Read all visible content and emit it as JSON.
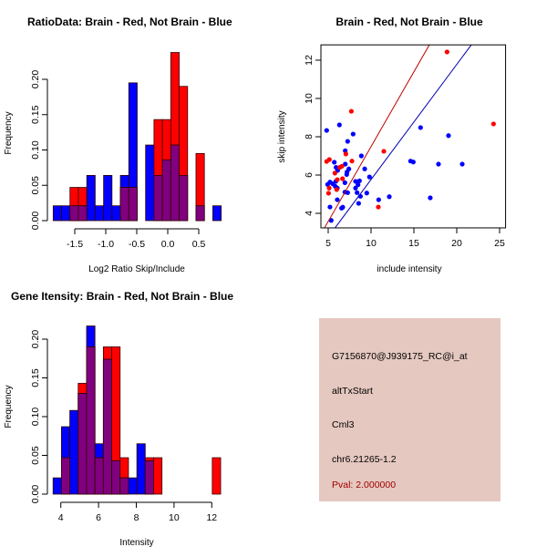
{
  "colors": {
    "blue": "#0000ff",
    "red": "#ff0000",
    "overlap": "#800080",
    "line_red": "#c00000",
    "line_blue": "#0000b0",
    "infobox_bg": "#e5c8c0",
    "pval": "#a00000"
  },
  "chart_data": [
    {
      "type": "bar",
      "title": "RatioData: Brain - Red, Not Brain - Blue",
      "xlabel": "Log2 Ratio Skip/Include",
      "ylabel": "Frequency",
      "bin_start": -1.848,
      "bin_width": 0.1355,
      "series": [
        {
          "name": "Not Brain",
          "color": "blue",
          "values": [
            0.021,
            0.021,
            0.021,
            0.021,
            0.064,
            0.021,
            0.064,
            0.021,
            0.064,
            0.195,
            0,
            0.107,
            0.064,
            0.086,
            0.107,
            0.064,
            0,
            0.021,
            0,
            0.021
          ]
        },
        {
          "name": "Brain",
          "color": "red",
          "values": [
            0,
            0,
            0.047,
            0.047,
            0,
            0,
            0,
            0,
            0.047,
            0.047,
            0,
            0,
            0.143,
            0.143,
            0.238,
            0.19,
            0,
            0.095,
            0,
            0
          ]
        }
      ],
      "xticks": [
        "-1.5",
        "-1.0",
        "-0.5",
        "0.0",
        "0.5"
      ],
      "xtick_values": [
        -1.5,
        -1.0,
        -0.5,
        0.0,
        0.5
      ],
      "yticks": [
        "0.00",
        "0.05",
        "0.10",
        "0.15",
        "0.20"
      ],
      "ytick_values": [
        0,
        0.05,
        0.1,
        0.15,
        0.2
      ]
    },
    {
      "type": "scatter",
      "title": "Brain - Red, Not Brain - Blue",
      "xlabel": "include intensity",
      "ylabel": "skip intensity",
      "xlim": [
        4.15,
        25.7
      ],
      "ylim": [
        3.24,
        12.8
      ],
      "xticks": [
        "5",
        "10",
        "15",
        "20",
        "25"
      ],
      "xtick_values": [
        5,
        10,
        15,
        20,
        25
      ],
      "yticks": [
        "4",
        "6",
        "8",
        "10",
        "12"
      ],
      "ytick_values": [
        4,
        6,
        8,
        10,
        12
      ],
      "lines": [
        {
          "name": "red",
          "color": "line_red",
          "points": [
            [
              4.57,
              3.24
            ],
            [
              16.8,
              12.8
            ]
          ]
        },
        {
          "name": "blue",
          "color": "line_blue",
          "points": [
            [
              5.8,
              3.24
            ],
            [
              21.7,
              12.8
            ]
          ]
        }
      ],
      "series": [
        {
          "name": "Not Brain",
          "color": "blue",
          "points": [
            [
              4.82,
              8.33
            ],
            [
              6.31,
              8.62
            ],
            [
              7.91,
              8.14
            ],
            [
              7.27,
              7.76
            ],
            [
              6.99,
              7.27
            ],
            [
              8.87,
              7.0
            ],
            [
              6.99,
              6.57
            ],
            [
              7.41,
              6.32
            ],
            [
              7.2,
              6.16
            ],
            [
              7.16,
              6.03
            ],
            [
              5.71,
              6.67
            ],
            [
              5.92,
              6.4
            ],
            [
              4.93,
              5.51
            ],
            [
              5.21,
              5.63
            ],
            [
              5.53,
              5.54
            ],
            [
              5.82,
              5.41
            ],
            [
              6.06,
              5.32
            ],
            [
              5.89,
              5.67
            ],
            [
              6.1,
              6.24
            ],
            [
              6.95,
              5.6
            ],
            [
              6.95,
              5.11
            ],
            [
              7.27,
              5.08
            ],
            [
              8.19,
              5.67
            ],
            [
              8.48,
              5.49
            ],
            [
              8.65,
              5.7
            ],
            [
              8.37,
              5.08
            ],
            [
              8.76,
              4.89
            ],
            [
              8.19,
              5.32
            ],
            [
              9.26,
              6.32
            ],
            [
              9.82,
              5.9
            ],
            [
              9.5,
              5.06
            ],
            [
              8.55,
              4.52
            ],
            [
              10.89,
              4.71
            ],
            [
              12.13,
              4.87
            ],
            [
              5.21,
              4.33
            ],
            [
              5.35,
              3.63
            ],
            [
              6.06,
              4.71
            ],
            [
              6.56,
              4.27
            ],
            [
              6.7,
              4.32
            ],
            [
              14.61,
              6.73
            ],
            [
              14.93,
              6.68
            ],
            [
              15.78,
              8.48
            ],
            [
              19.04,
              8.06
            ],
            [
              17.87,
              6.57
            ],
            [
              20.64,
              6.57
            ],
            [
              16.91,
              4.81
            ]
          ]
        },
        {
          "name": "Brain",
          "color": "red",
          "points": [
            [
              7.7,
              9.33
            ],
            [
              18.87,
              12.43
            ],
            [
              24.29,
              8.67
            ],
            [
              11.49,
              7.24
            ],
            [
              7.77,
              6.73
            ],
            [
              7.06,
              7.1
            ],
            [
              4.82,
              6.71
            ],
            [
              5.14,
              6.81
            ],
            [
              5.78,
              6.1
            ],
            [
              6.35,
              6.4
            ],
            [
              6.6,
              6.46
            ],
            [
              6.06,
              5.76
            ],
            [
              6.67,
              5.81
            ],
            [
              5.11,
              5.32
            ],
            [
              5.04,
              5.05
            ],
            [
              5.99,
              5.24
            ],
            [
              10.85,
              4.33
            ]
          ]
        }
      ]
    },
    {
      "type": "bar",
      "title": "Gene Itensity: Brain - Red, Not Brain - Blue",
      "xlabel": "Intensity",
      "ylabel": "Frequency",
      "bin_start": 3.59,
      "bin_width": 0.444,
      "series": [
        {
          "name": "Not Brain",
          "color": "blue",
          "values": [
            0.021,
            0.087,
            0.108,
            0.13,
            0.217,
            0.065,
            0.174,
            0.043,
            0.021,
            0.021,
            0.065,
            0.043,
            0,
            0,
            0,
            0,
            0,
            0,
            0,
            0
          ]
        },
        {
          "name": "Brain",
          "color": "red",
          "values": [
            0,
            0.047,
            0,
            0.143,
            0.19,
            0.047,
            0.19,
            0.19,
            0.047,
            0,
            0,
            0.047,
            0.047,
            0,
            0,
            0,
            0,
            0,
            0,
            0.047
          ]
        }
      ],
      "xticks": [
        "4",
        "6",
        "8",
        "10",
        "12"
      ],
      "xtick_values": [
        4,
        6,
        8,
        10,
        12
      ],
      "yticks": [
        "0.00",
        "0.05",
        "0.10",
        "0.15",
        "0.20"
      ],
      "ytick_values": [
        0,
        0.05,
        0.1,
        0.15,
        0.2
      ]
    }
  ],
  "infobox": {
    "probe": "G7156870@J939175_RC@i_at",
    "event": "altTxStart",
    "gene": "Cml3",
    "location": "chr6.21265-1.2",
    "pval": "Pval: 2.000000"
  }
}
